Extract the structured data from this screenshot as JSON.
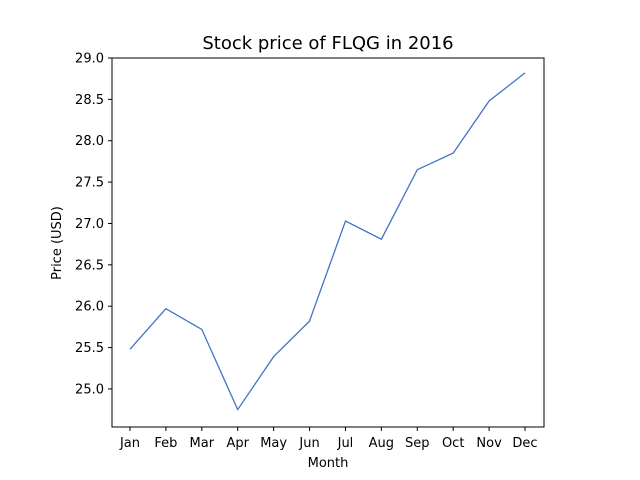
{
  "chart_data": {
    "type": "line",
    "title": "Stock price of FLQG in 2016",
    "xlabel": "Month",
    "ylabel": "Price (USD)",
    "categories": [
      "Jan",
      "Feb",
      "Mar",
      "Apr",
      "May",
      "Jun",
      "Jul",
      "Aug",
      "Sep",
      "Oct",
      "Nov",
      "Dec"
    ],
    "series": [
      {
        "values": [
          25.48,
          25.97,
          25.72,
          24.75,
          25.39,
          25.82,
          27.03,
          26.81,
          27.65,
          27.85,
          28.48,
          28.82
        ],
        "color": "#4472c4"
      }
    ],
    "yticks": [
      25.0,
      25.5,
      26.0,
      26.5,
      27.0,
      27.5,
      28.0,
      28.5,
      29.0
    ],
    "ylim": [
      24.54,
      29.0
    ],
    "grid": false,
    "legend": "none"
  }
}
